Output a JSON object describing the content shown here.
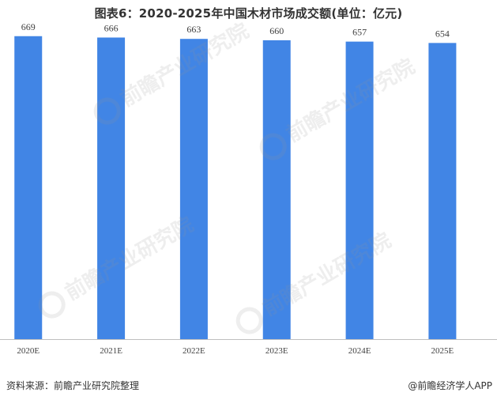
{
  "chart_data": {
    "type": "bar",
    "title": "图表6：2020-2025年中国木材市场成交额(单位：亿元)",
    "categories": [
      "2020E",
      "2021E",
      "2022E",
      "2023E",
      "2024E",
      "2025E"
    ],
    "values": [
      669,
      666,
      663,
      660,
      657,
      654
    ],
    "ylim": [
      0,
      700
    ],
    "grid": false,
    "bar_color": "#4185E5",
    "label_color": "#404040",
    "axis_color": "#bfbfbf"
  },
  "watermark": {
    "text": "前瞻产业研究院"
  },
  "footer": {
    "source": "资料来源：前瞻产业研究院整理",
    "brand": "@前瞻经济学人APP"
  }
}
